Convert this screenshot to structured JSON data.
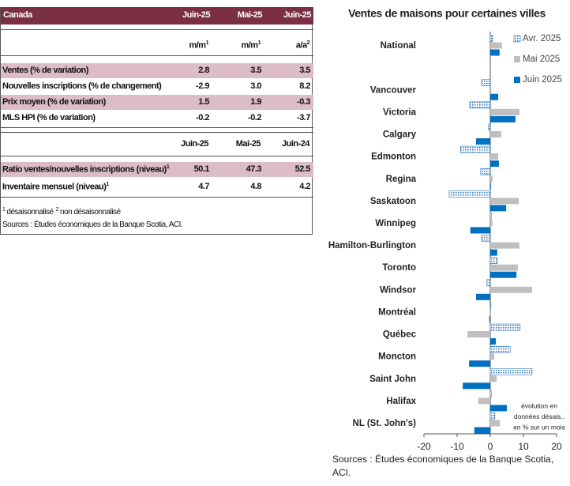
{
  "table": {
    "header": [
      "Canada",
      "Juin-25",
      "Mai-25",
      "Juin-25"
    ],
    "units": [
      {
        "text": "m/m",
        "sup": "1"
      },
      {
        "text": "m/m",
        "sup": "1"
      },
      {
        "text": "a/a",
        "sup": "2"
      }
    ],
    "rows": [
      {
        "label": "Ventes (% de variation)",
        "values": [
          "2.8",
          "3.5",
          "3.5"
        ]
      },
      {
        "label": "Nouvelles inscriptions (% de changement)",
        "values": [
          "-2.9",
          "3.0",
          "8.2"
        ]
      },
      {
        "label": "Prix moyen (% de variation)",
        "values": [
          "1.5",
          "1.9",
          "-0.3"
        ]
      },
      {
        "label": "MLS HPI (% de variation)",
        "values": [
          "-0.2",
          "-0.2",
          "-3.7"
        ]
      }
    ],
    "header2": [
      "Juin-25",
      "Mai-25",
      "Juin-24"
    ],
    "rows2": [
      {
        "label": "Ratio ventes/nouvelles inscriptions (niveau)",
        "sup": "1",
        "values": [
          "50.1",
          "47.3",
          "52.5"
        ]
      },
      {
        "label": "Inventaire mensuel (niveau)",
        "sup": "1",
        "values": [
          "4.7",
          "4.8",
          "4.2"
        ]
      }
    ],
    "footnotes": [
      {
        "sup": "1",
        "text": "désaisonnalisé"
      },
      {
        "sup": "2",
        "text": "non désaisonnalisé"
      }
    ],
    "source": "Sources : Études économiques de la Banque Scotia, ACI."
  },
  "chart_data": {
    "type": "hbar",
    "title": "Ventes de maisons pour certaines villes",
    "categories": [
      "National",
      null,
      "Vancouver",
      "Victoria",
      "Calgary",
      "Edmonton",
      "Regina",
      "Saskatoon",
      "Winnipeg",
      "Hamilton-Burlington",
      "Toronto",
      "Windsor",
      "Montréal",
      "Québec",
      "Moncton",
      "Saint John",
      "Halifax",
      "NL (St. John's)"
    ],
    "series": [
      {
        "name": "Avr. 2025",
        "color": "#2e75b6",
        "pattern": "dots",
        "values": [
          0.7,
          null,
          -2.6,
          -6.2,
          -0.5,
          -9.0,
          -2.9,
          -12.4,
          0.3,
          -2.6,
          2.1,
          -1.0,
          0.2,
          9.0,
          6.0,
          12.6,
          0.3,
          1.4
        ]
      },
      {
        "name": "Mai 2025",
        "color": "#bfbfbf",
        "values": [
          3.5,
          null,
          0.3,
          8.8,
          3.3,
          2.4,
          0.7,
          8.6,
          0.7,
          8.8,
          8.3,
          12.6,
          -0.2,
          -6.9,
          1.2,
          1.9,
          -3.6,
          2.9
        ]
      },
      {
        "name": "Juin 2025",
        "color": "#0070c0",
        "values": [
          2.8,
          null,
          2.4,
          7.6,
          -4.3,
          2.6,
          0.2,
          4.8,
          -6.0,
          2.1,
          7.9,
          -4.3,
          -0.3,
          1.7,
          -6.4,
          -8.3,
          5.0,
          -4.8
        ]
      }
    ],
    "xlim": [
      -20,
      20
    ],
    "xticks": [
      -20,
      -10,
      0,
      10,
      20
    ],
    "legend": "upper right",
    "annotation": [
      "évolution en",
      "données désais.,",
      "en % sur un mois"
    ],
    "source": "Sources : Études économiques de la Banque Scotia, ACI."
  }
}
